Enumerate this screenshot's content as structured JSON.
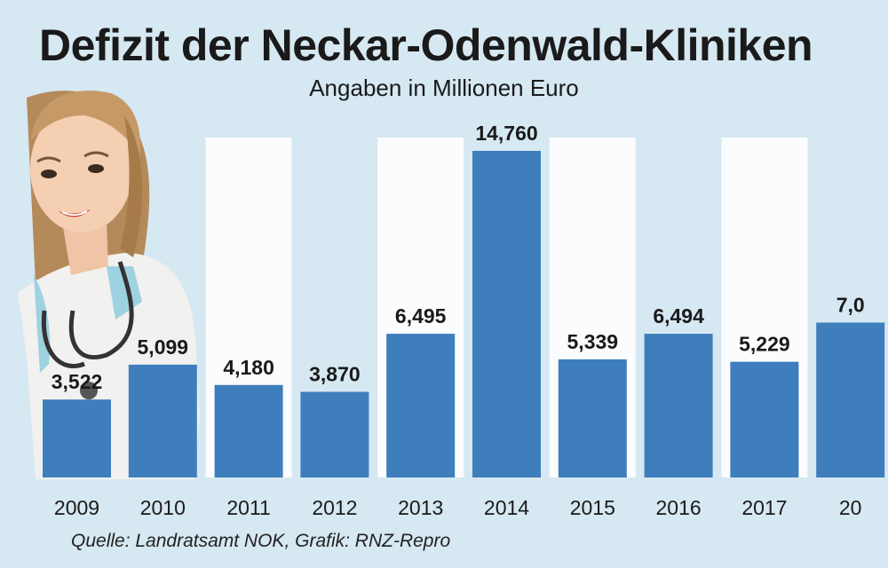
{
  "title": "Defizit der Neckar-Odenwald-Kliniken",
  "subtitle": "Angaben in Millionen Euro",
  "source": "Quelle: Landratsamt NOK, Grafik: RNZ-Repro",
  "colors": {
    "background": "#d6e8f2",
    "bar": "#3f7ebc",
    "stripe": "#fafcfd",
    "text": "#1a1a1a"
  },
  "illustration": "doctor-with-stethoscope",
  "chart_data": {
    "type": "bar",
    "title": "Defizit der Neckar-Odenwald-Kliniken",
    "subtitle": "Angaben in Millionen Euro",
    "categories": [
      "2009",
      "2010",
      "2011",
      "2012",
      "2013",
      "2014",
      "2015",
      "2016",
      "2017",
      "20"
    ],
    "values": [
      3.522,
      5.099,
      4.18,
      3.87,
      6.495,
      14.76,
      5.339,
      6.494,
      5.229,
      7.0
    ],
    "value_labels": [
      "3,522",
      "5,099",
      "4,180",
      "3,870",
      "6,495",
      "14,760",
      "5,339",
      "6,494",
      "5,229",
      "7,0"
    ],
    "xlabel": "",
    "ylabel": "",
    "ylim": [
      0,
      16
    ],
    "grid": false,
    "legend": "none"
  }
}
